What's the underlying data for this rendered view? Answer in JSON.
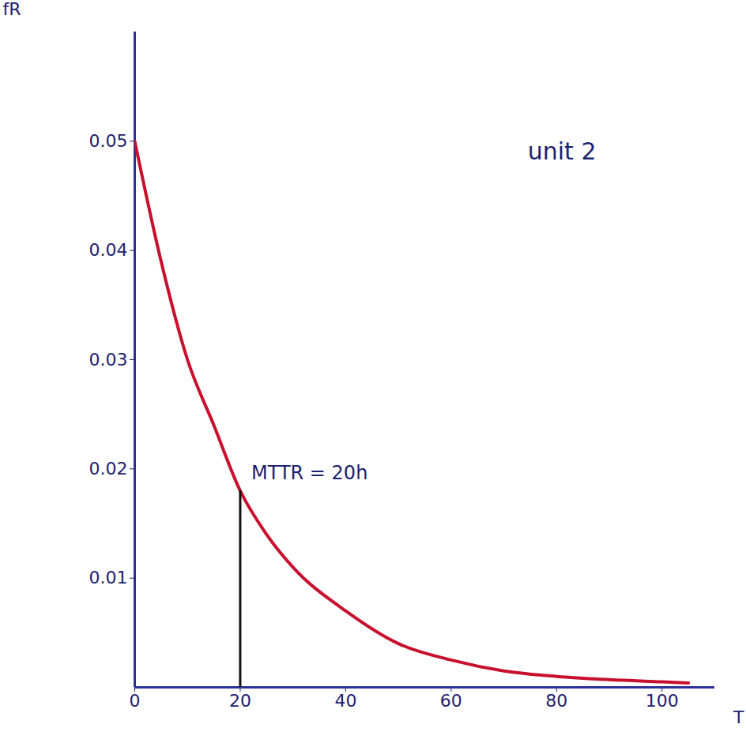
{
  "chart_data": {
    "type": "line",
    "x_label": "T",
    "y_label": "fR",
    "x": [
      0,
      5,
      10,
      15,
      20,
      25,
      30,
      40,
      50,
      60,
      70,
      80,
      90,
      100,
      105
    ],
    "values": [
      0.05,
      0.039,
      0.03,
      0.024,
      0.018,
      0.014,
      0.011,
      0.007,
      0.004,
      0.0025,
      0.0015,
      0.001,
      0.0007,
      0.0005,
      0.0004
    ],
    "color": "#c8102e",
    "xlim": [
      0,
      110
    ],
    "ylim": [
      0,
      0.06
    ],
    "xticks": [
      0,
      20,
      40,
      60,
      80,
      100
    ],
    "yticks": [
      0.01,
      0.02,
      0.03,
      0.04,
      0.05
    ],
    "grid": false,
    "annotations": [
      {
        "text": "unit 2"
      },
      {
        "text": "MTTR = 20h",
        "x": 20,
        "y": 0.018
      }
    ]
  }
}
